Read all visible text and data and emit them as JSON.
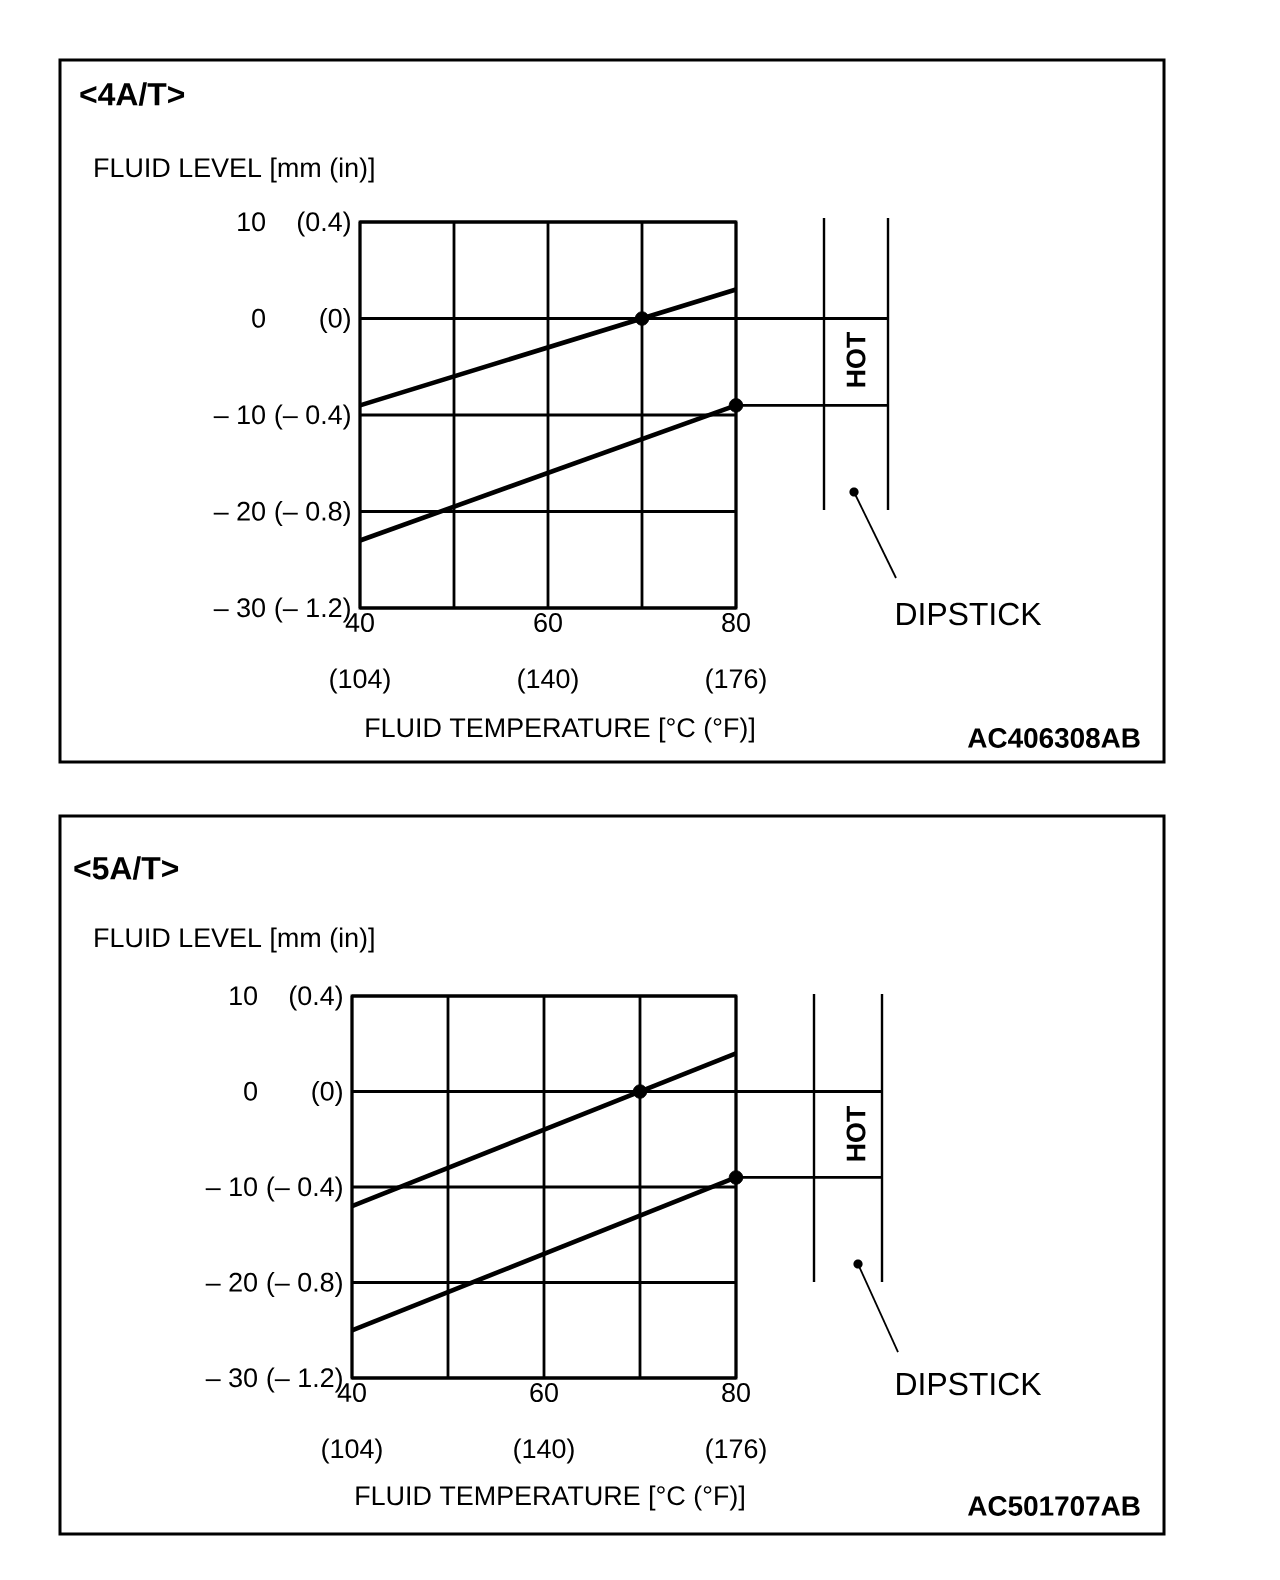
{
  "chart_data": [
    {
      "type": "line",
      "title": "<4A/T>",
      "xlabel": "FLUID TEMPERATURE [°C (°F)]",
      "ylabel": "FLUID LEVEL [mm (in)]",
      "annotations": [
        "HOT",
        "DIPSTICK",
        "AC406308AB"
      ],
      "xlim": [
        40,
        80
      ],
      "ylim": [
        -30,
        10
      ],
      "xticks": [
        {
          "value": 40,
          "label": "40"
        },
        {
          "value": 60,
          "label": "60"
        },
        {
          "value": 80,
          "label": "80"
        }
      ],
      "x2lim": [
        104,
        176
      ],
      "x2ticks": [
        {
          "value": 104,
          "label": "(104)"
        },
        {
          "value": 140,
          "label": "(140)"
        },
        {
          "value": 176,
          "label": "(176)"
        }
      ],
      "yticks": [
        {
          "value": 10,
          "label": "10"
        },
        {
          "value": 0,
          "label": "0"
        },
        {
          "value": -10,
          "label": "– 10"
        },
        {
          "value": -20,
          "label": "– 20"
        },
        {
          "value": -30,
          "label": "– 30"
        }
      ],
      "y2lim": [
        -1.2,
        0.4
      ],
      "y2ticks": [
        {
          "value": 0.4,
          "label": "(0.4)"
        },
        {
          "value": 0,
          "label": "(0)"
        },
        {
          "value": -0.4,
          "label": "(– 0.4)"
        },
        {
          "value": -0.8,
          "label": "(– 0.8)"
        },
        {
          "value": -1.2,
          "label": "(– 1.2)"
        }
      ],
      "grid": true,
      "series": [
        {
          "color": "#000000",
          "x": [
            40,
            80
          ],
          "values": [
            -9,
            3
          ]
        },
        {
          "color": "#000000",
          "x": [
            40,
            80
          ],
          "values": [
            -23,
            -9
          ]
        },
        {
          "type": "scatter",
          "color": "#000000",
          "x": [
            70,
            80
          ],
          "values": [
            0,
            -9
          ]
        }
      ]
    },
    {
      "type": "line",
      "title": "<5A/T>",
      "xlabel": "FLUID TEMPERATURE [°C (°F)]",
      "ylabel": "FLUID LEVEL [mm (in)]",
      "annotations": [
        "HOT",
        "DIPSTICK",
        "AC501707AB"
      ],
      "xlim": [
        40,
        80
      ],
      "ylim": [
        -30,
        10
      ],
      "xticks": [
        {
          "value": 40,
          "label": "40"
        },
        {
          "value": 60,
          "label": "60"
        },
        {
          "value": 80,
          "label": "80"
        }
      ],
      "x2lim": [
        104,
        176
      ],
      "x2ticks": [
        {
          "value": 104,
          "label": "(104)"
        },
        {
          "value": 140,
          "label": "(140)"
        },
        {
          "value": 176,
          "label": "(176)"
        }
      ],
      "yticks": [
        {
          "value": 10,
          "label": "10"
        },
        {
          "value": 0,
          "label": "0"
        },
        {
          "value": -10,
          "label": "– 10"
        },
        {
          "value": -20,
          "label": "– 20"
        },
        {
          "value": -30,
          "label": "– 30"
        }
      ],
      "y2lim": [
        -1.2,
        0.4
      ],
      "y2ticks": [
        {
          "value": 0.4,
          "label": "(0.4)"
        },
        {
          "value": 0,
          "label": "(0)"
        },
        {
          "value": -0.4,
          "label": "(– 0.4)"
        },
        {
          "value": -0.8,
          "label": "(– 0.8)"
        },
        {
          "value": -1.2,
          "label": "(– 1.2)"
        }
      ],
      "grid": true,
      "series": [
        {
          "color": "#000000",
          "x": [
            40,
            80
          ],
          "values": [
            -12,
            4
          ]
        },
        {
          "color": "#000000",
          "x": [
            40,
            80
          ],
          "values": [
            -25,
            -9
          ]
        },
        {
          "type": "scatter",
          "color": "#000000",
          "x": [
            70,
            80
          ],
          "values": [
            0,
            -9
          ]
        }
      ]
    }
  ]
}
